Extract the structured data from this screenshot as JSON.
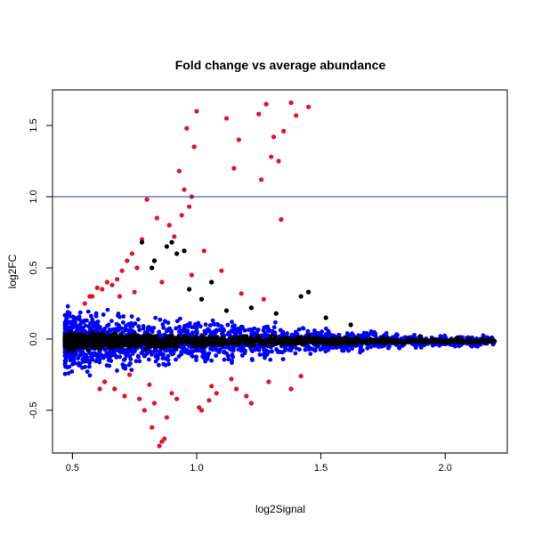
{
  "chart_data": {
    "type": "scatter",
    "title": "Fold change vs average abundance",
    "xlabel": "log2Signal",
    "ylabel": "log2FC",
    "xlim": [
      0.42,
      2.25
    ],
    "ylim": [
      -0.8,
      1.75
    ],
    "x_ticks": [
      0.5,
      1.0,
      1.5,
      2.0
    ],
    "x_tick_labels": [
      "0.5",
      "1.0",
      "1.5",
      "2.0"
    ],
    "y_ticks": [
      -0.5,
      0.0,
      0.5,
      1.0,
      1.5
    ],
    "y_tick_labels": [
      "-0.5",
      "0.0",
      "0.5",
      "1.0",
      "1.5"
    ],
    "reference_line": {
      "y": 1.0,
      "color": "#1f3a93"
    },
    "grid": false,
    "legend": "none",
    "colors": {
      "red": "#e8112d",
      "black": "#000000",
      "blue": "#0000ff"
    },
    "series": [
      {
        "color": "red",
        "x": [
          0.85,
          0.87,
          0.86,
          1.28,
          1.25,
          1.38,
          1.45,
          1.4,
          1.31,
          1.35,
          0.96,
          1.0,
          0.99,
          1.12,
          1.17,
          1.15,
          1.3,
          1.33,
          1.26,
          0.93,
          0.95,
          0.98,
          0.97,
          0.94,
          0.89,
          0.91,
          1.03,
          1.1,
          0.8,
          0.84,
          0.78,
          0.74,
          0.72,
          0.7,
          0.76,
          0.68,
          0.66,
          0.62,
          0.58,
          0.6,
          0.64,
          0.82,
          0.88,
          1.02,
          1.05,
          1.08,
          1.2,
          1.38,
          1.22,
          0.55,
          0.57,
          0.63,
          0.67,
          0.71,
          0.79,
          0.83,
          0.9,
          1.06,
          1.14,
          0.73,
          0.81,
          0.92,
          1.01,
          1.16,
          1.29,
          1.42,
          0.69,
          0.75,
          0.86,
          0.98,
          1.18,
          1.27,
          1.34,
          0.61,
          0.77
        ],
        "y": [
          -0.75,
          -0.7,
          -0.72,
          1.65,
          1.58,
          1.66,
          1.63,
          1.57,
          1.42,
          1.46,
          1.48,
          1.6,
          1.35,
          1.55,
          1.4,
          1.2,
          1.28,
          1.25,
          1.12,
          1.18,
          1.05,
          1.0,
          0.93,
          0.87,
          0.8,
          0.72,
          0.62,
          0.48,
          0.98,
          0.85,
          0.7,
          0.6,
          0.55,
          0.48,
          0.5,
          0.42,
          0.38,
          0.35,
          0.3,
          0.36,
          0.4,
          -0.62,
          -0.55,
          -0.5,
          -0.43,
          -0.38,
          -0.4,
          -0.35,
          -0.45,
          0.25,
          0.3,
          -0.3,
          -0.35,
          -0.4,
          -0.5,
          -0.45,
          -0.38,
          -0.33,
          -0.28,
          -0.25,
          -0.32,
          -0.42,
          -0.48,
          -0.35,
          -0.3,
          -0.26,
          0.3,
          0.33,
          0.4,
          0.45,
          0.32,
          0.28,
          0.84,
          -0.35,
          -0.42
        ]
      },
      {
        "color": "black",
        "x": [
          0.47,
          0.5,
          0.55,
          0.6,
          0.65,
          0.7,
          0.75,
          0.8,
          0.85,
          0.9,
          0.95,
          1.0,
          1.05,
          1.1,
          1.15,
          1.2,
          1.25,
          1.3,
          1.35,
          1.4,
          1.45,
          1.5,
          1.55,
          1.6,
          1.65,
          1.7,
          1.75,
          1.8,
          1.85,
          1.9,
          1.95,
          2.0,
          2.05,
          2.1,
          2.15,
          2.18,
          0.78,
          0.83,
          0.88,
          0.92,
          0.97,
          1.02,
          1.12,
          1.22,
          1.32,
          1.42,
          1.52,
          1.62,
          0.82,
          0.9,
          0.95,
          1.06,
          1.45
        ],
        "y": [
          0.0,
          0.02,
          -0.03,
          0.01,
          0.0,
          -0.02,
          0.03,
          0.0,
          -0.01,
          0.02,
          0.0,
          -0.02,
          0.01,
          0.0,
          -0.01,
          0.02,
          0.0,
          -0.02,
          0.01,
          0.0,
          0.02,
          -0.01,
          0.0,
          0.01,
          -0.02,
          0.0,
          0.01,
          -0.01,
          0.0,
          0.02,
          0.0,
          -0.01,
          0.01,
          0.0,
          0.0,
          0.0,
          0.68,
          0.55,
          0.65,
          0.6,
          0.35,
          0.28,
          0.2,
          0.22,
          0.18,
          0.3,
          0.15,
          0.1,
          0.5,
          0.68,
          0.62,
          0.4,
          0.33
        ]
      }
    ],
    "band_series": [
      {
        "color": "blue",
        "x_range": [
          0.47,
          2.2
        ],
        "y_spread": 0.26
      },
      {
        "color": "black",
        "x_range": [
          0.47,
          2.2
        ],
        "y_spread": 0.07
      }
    ]
  }
}
